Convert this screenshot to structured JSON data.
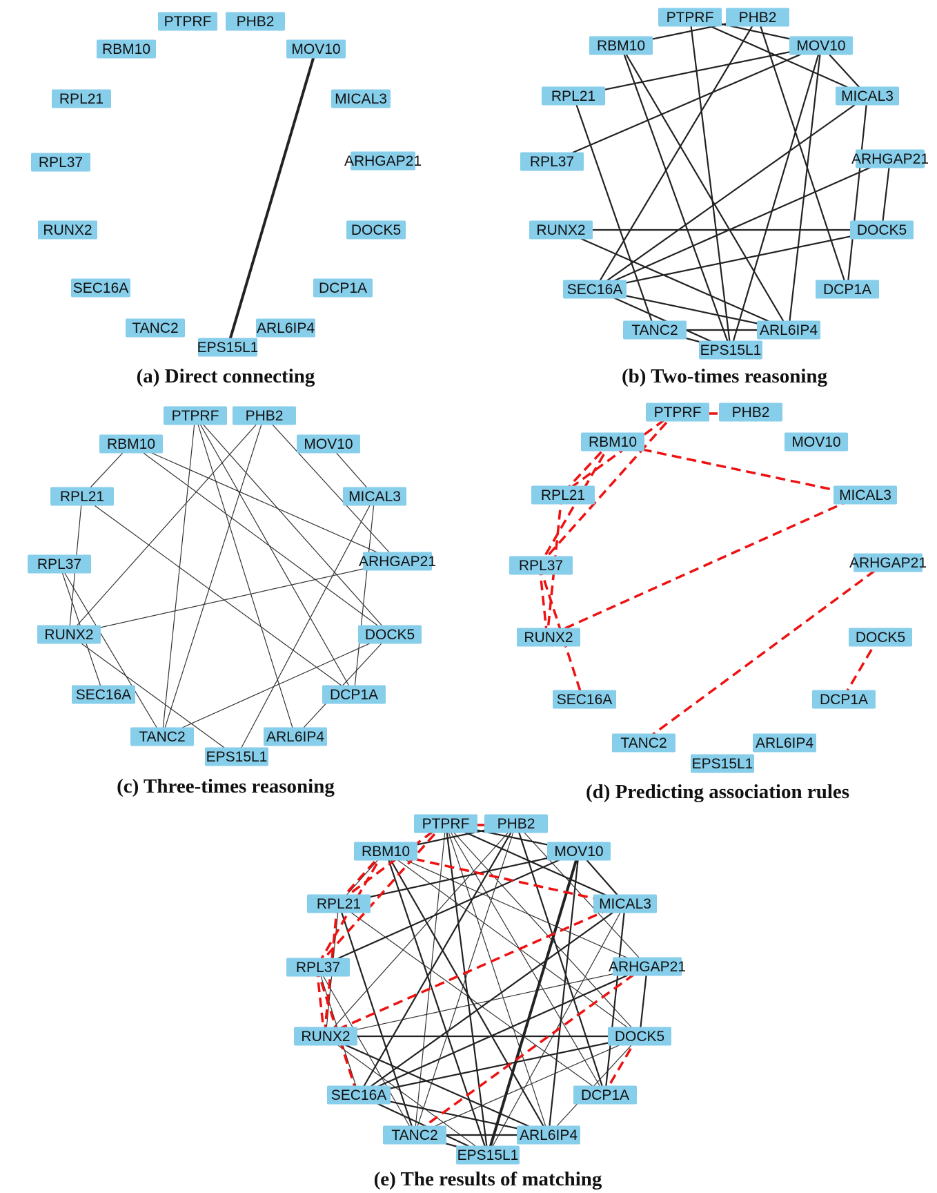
{
  "nodes": [
    "PTPRF",
    "PHB2",
    "MOV10",
    "MICAL3",
    "ARHGAP21",
    "DOCK5",
    "DCP1A",
    "ARL6IP4",
    "EPS15L1",
    "TANC2",
    "SEC16A",
    "RUNX2",
    "RPL37",
    "RPL21",
    "RBM10"
  ],
  "colors": {
    "node_fill": "#87CEEB",
    "edge": "#222222",
    "predicted_edge": "#ee1111"
  },
  "panels": [
    {
      "id": "a",
      "caption": "(a) Direct connecting",
      "edges_thick": [
        [
          "MOV10",
          "EPS15L1"
        ]
      ],
      "edges_med": [],
      "edges_thin": [],
      "edges_red": []
    },
    {
      "id": "b",
      "caption": "(b) Two-times reasoning",
      "edges_thick": [],
      "edges_med": [
        [
          "PTPRF",
          "EPS15L1"
        ],
        [
          "PTPRF",
          "MICAL3"
        ],
        [
          "PTPRF",
          "MOV10"
        ],
        [
          "PHB2",
          "DCP1A"
        ],
        [
          "PHB2",
          "SEC16A"
        ],
        [
          "PHB2",
          "RBM10"
        ],
        [
          "MOV10",
          "RPL21"
        ],
        [
          "MOV10",
          "RPL37"
        ],
        [
          "MOV10",
          "ARL6IP4"
        ],
        [
          "MOV10",
          "EPS15L1"
        ],
        [
          "MOV10",
          "MICAL3"
        ],
        [
          "MICAL3",
          "SEC16A"
        ],
        [
          "MICAL3",
          "DCP1A"
        ],
        [
          "ARHGAP21",
          "SEC16A"
        ],
        [
          "ARHGAP21",
          "DOCK5"
        ],
        [
          "DOCK5",
          "RUNX2"
        ],
        [
          "DOCK5",
          "SEC16A"
        ],
        [
          "RBM10",
          "EPS15L1"
        ],
        [
          "RBM10",
          "ARL6IP4"
        ],
        [
          "RPL21",
          "TANC2"
        ],
        [
          "RUNX2",
          "ARL6IP4"
        ],
        [
          "SEC16A",
          "ARL6IP4"
        ],
        [
          "SEC16A",
          "EPS15L1"
        ],
        [
          "TANC2",
          "ARL6IP4"
        ],
        [
          "TANC2",
          "EPS15L1"
        ]
      ],
      "edges_thin": [],
      "edges_red": []
    },
    {
      "id": "c",
      "caption": "(c) Three-times reasoning",
      "edges_thick": [],
      "edges_med": [],
      "edges_thin": [
        [
          "PTPRF",
          "DOCK5"
        ],
        [
          "PTPRF",
          "ARL6IP4"
        ],
        [
          "PTPRF",
          "TANC2"
        ],
        [
          "PTPRF",
          "DCP1A"
        ],
        [
          "PHB2",
          "TANC2"
        ],
        [
          "PHB2",
          "RUNX2"
        ],
        [
          "PHB2",
          "ARHGAP21"
        ],
        [
          "MOV10",
          "MICAL3"
        ],
        [
          "MICAL3",
          "EPS15L1"
        ],
        [
          "MICAL3",
          "DCP1A"
        ],
        [
          "ARHGAP21",
          "RUNX2"
        ],
        [
          "DOCK5",
          "TANC2"
        ],
        [
          "DOCK5",
          "ARL6IP4"
        ],
        [
          "RBM10",
          "RPL21"
        ],
        [
          "RBM10",
          "DOCK5"
        ],
        [
          "RBM10",
          "ARHGAP21"
        ],
        [
          "RPL21",
          "RUNX2"
        ],
        [
          "RPL21",
          "DCP1A"
        ],
        [
          "RPL37",
          "SEC16A"
        ],
        [
          "RPL37",
          "TANC2"
        ],
        [
          "RUNX2",
          "EPS15L1"
        ]
      ],
      "edges_red": []
    },
    {
      "id": "d",
      "caption": "(d) Predicting association rules",
      "edges_thick": [],
      "edges_med": [],
      "edges_thin": [],
      "edges_red": [
        [
          "PTPRF",
          "PHB2"
        ],
        [
          "PTPRF",
          "RPL37"
        ],
        [
          "PTPRF",
          "RPL21"
        ],
        [
          "RBM10",
          "RPL37"
        ],
        [
          "RBM10",
          "RPL21"
        ],
        [
          "RBM10",
          "MICAL3"
        ],
        [
          "RPL37",
          "RUNX2"
        ],
        [
          "RPL21",
          "RUNX2"
        ],
        [
          "RPL37",
          "SEC16A"
        ],
        [
          "MICAL3",
          "RUNX2"
        ],
        [
          "ARHGAP21",
          "TANC2"
        ],
        [
          "DOCK5",
          "DCP1A"
        ]
      ]
    },
    {
      "id": "e",
      "caption": "(e) The results of matching",
      "edges_thick": [
        [
          "MOV10",
          "EPS15L1"
        ]
      ],
      "edges_med": [
        [
          "PTPRF",
          "EPS15L1"
        ],
        [
          "PTPRF",
          "MICAL3"
        ],
        [
          "PTPRF",
          "MOV10"
        ],
        [
          "PHB2",
          "DCP1A"
        ],
        [
          "PHB2",
          "SEC16A"
        ],
        [
          "PHB2",
          "RBM10"
        ],
        [
          "MOV10",
          "RPL21"
        ],
        [
          "MOV10",
          "RPL37"
        ],
        [
          "MOV10",
          "ARL6IP4"
        ],
        [
          "MOV10",
          "MICAL3"
        ],
        [
          "MICAL3",
          "SEC16A"
        ],
        [
          "MICAL3",
          "DCP1A"
        ],
        [
          "ARHGAP21",
          "SEC16A"
        ],
        [
          "ARHGAP21",
          "DOCK5"
        ],
        [
          "DOCK5",
          "RUNX2"
        ],
        [
          "DOCK5",
          "SEC16A"
        ],
        [
          "RBM10",
          "EPS15L1"
        ],
        [
          "RBM10",
          "ARL6IP4"
        ],
        [
          "RPL21",
          "TANC2"
        ],
        [
          "RUNX2",
          "ARL6IP4"
        ],
        [
          "SEC16A",
          "ARL6IP4"
        ],
        [
          "SEC16A",
          "EPS15L1"
        ],
        [
          "TANC2",
          "ARL6IP4"
        ],
        [
          "TANC2",
          "EPS15L1"
        ]
      ],
      "edges_thin": [
        [
          "PTPRF",
          "DOCK5"
        ],
        [
          "PTPRF",
          "ARL6IP4"
        ],
        [
          "PTPRF",
          "TANC2"
        ],
        [
          "PTPRF",
          "DCP1A"
        ],
        [
          "PHB2",
          "TANC2"
        ],
        [
          "PHB2",
          "RUNX2"
        ],
        [
          "PHB2",
          "ARHGAP21"
        ],
        [
          "MICAL3",
          "EPS15L1"
        ],
        [
          "ARHGAP21",
          "RUNX2"
        ],
        [
          "DOCK5",
          "TANC2"
        ],
        [
          "DOCK5",
          "ARL6IP4"
        ],
        [
          "RBM10",
          "RPL21"
        ],
        [
          "RBM10",
          "DOCK5"
        ],
        [
          "RBM10",
          "ARHGAP21"
        ],
        [
          "RPL21",
          "RUNX2"
        ],
        [
          "RPL21",
          "DCP1A"
        ],
        [
          "RPL37",
          "SEC16A"
        ],
        [
          "RPL37",
          "TANC2"
        ],
        [
          "RUNX2",
          "EPS15L1"
        ]
      ],
      "edges_red": [
        [
          "PTPRF",
          "PHB2"
        ],
        [
          "PTPRF",
          "RPL37"
        ],
        [
          "PTPRF",
          "RPL21"
        ],
        [
          "RBM10",
          "RPL37"
        ],
        [
          "RBM10",
          "RPL21"
        ],
        [
          "RBM10",
          "MICAL3"
        ],
        [
          "RPL37",
          "RUNX2"
        ],
        [
          "RPL21",
          "RUNX2"
        ],
        [
          "RPL37",
          "SEC16A"
        ],
        [
          "MICAL3",
          "RUNX2"
        ],
        [
          "ARHGAP21",
          "TANC2"
        ],
        [
          "DOCK5",
          "DCP1A"
        ]
      ]
    }
  ]
}
